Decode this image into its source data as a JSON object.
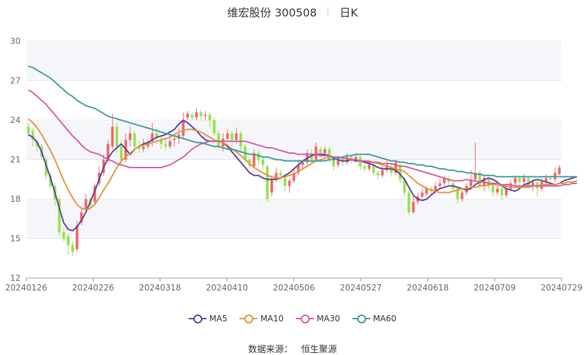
{
  "header": {
    "title": "维宏股份 300508",
    "period": "日K"
  },
  "legend": [
    {
      "key": "ma5",
      "label": "MA5",
      "color": "#5a3fa0"
    },
    {
      "key": "ma10",
      "label": "MA10",
      "color": "#e0953a"
    },
    {
      "key": "ma30",
      "label": "MA30",
      "color": "#d65aa8"
    },
    {
      "key": "ma60",
      "label": "MA60",
      "color": "#3f9a9a"
    }
  ],
  "source": {
    "label": "数据来源：",
    "value": "恒生聚源"
  },
  "colors": {
    "up": "#f06767",
    "down": "#95e34a",
    "grid": "#e6e9f0",
    "plot_bg_alt": "#f5f6fa"
  },
  "chart_data": {
    "type": "candlestick",
    "ylim": [
      12,
      30
    ],
    "yticks": [
      12,
      15,
      18,
      21,
      24,
      27,
      30
    ],
    "xticks": [
      "20240126",
      "20240226",
      "20240318",
      "20240410",
      "20240506",
      "20240527",
      "20240618",
      "20240709",
      "20240729"
    ],
    "candles": [
      [
        23.5,
        23.0,
        23.8,
        22.8
      ],
      [
        23.2,
        22.5,
        23.4,
        22.0
      ],
      [
        22.4,
        22.0,
        22.6,
        21.6
      ],
      [
        22.0,
        21.2,
        22.2,
        21.0
      ],
      [
        21.0,
        19.8,
        21.2,
        19.5
      ],
      [
        19.8,
        19.0,
        20.0,
        18.8
      ],
      [
        19.0,
        18.0,
        19.2,
        17.5
      ],
      [
        18.0,
        15.5,
        18.2,
        15.2
      ],
      [
        15.5,
        15.0,
        15.8,
        14.8
      ],
      [
        15.2,
        14.5,
        15.4,
        13.8
      ],
      [
        14.5,
        14.0,
        14.8,
        13.7
      ],
      [
        14.2,
        16.0,
        16.4,
        14.0
      ],
      [
        16.2,
        17.0,
        17.4,
        16.0
      ],
      [
        17.2,
        18.0,
        18.4,
        17.0
      ],
      [
        18.0,
        17.5,
        18.2,
        17.2
      ],
      [
        17.8,
        19.0,
        19.2,
        17.6
      ],
      [
        19.2,
        20.0,
        20.5,
        19.0
      ],
      [
        20.0,
        21.0,
        21.4,
        19.8
      ],
      [
        21.0,
        22.2,
        22.5,
        20.8
      ],
      [
        22.0,
        23.5,
        24.5,
        21.8
      ],
      [
        23.5,
        22.0,
        23.8,
        21.5
      ],
      [
        22.0,
        21.0,
        22.5,
        20.5
      ],
      [
        21.0,
        22.5,
        23.0,
        20.8
      ],
      [
        22.5,
        23.0,
        23.5,
        22.0
      ],
      [
        23.0,
        22.0,
        23.2,
        21.5
      ],
      [
        22.0,
        21.8,
        22.4,
        21.5
      ],
      [
        21.8,
        22.0,
        22.6,
        21.6
      ],
      [
        22.0,
        22.2,
        22.5,
        21.8
      ],
      [
        22.4,
        23.0,
        23.8,
        22.0
      ],
      [
        23.0,
        22.6,
        23.4,
        22.2
      ],
      [
        22.5,
        22.2,
        22.8,
        21.8
      ],
      [
        22.2,
        22.0,
        22.6,
        21.7
      ],
      [
        22.0,
        22.4,
        22.9,
        21.8
      ],
      [
        22.5,
        22.6,
        23.0,
        22.0
      ],
      [
        22.6,
        22.9,
        23.4,
        22.2
      ],
      [
        22.8,
        24.0,
        24.6,
        22.6
      ],
      [
        24.2,
        24.5,
        24.7,
        24.0
      ],
      [
        24.4,
        24.2,
        24.6,
        24.0
      ],
      [
        24.2,
        24.6,
        24.9,
        24.0
      ],
      [
        24.6,
        24.3,
        24.8,
        24.0
      ],
      [
        24.3,
        24.4,
        24.7,
        24.0
      ],
      [
        24.4,
        24.0,
        24.6,
        23.5
      ],
      [
        24.0,
        23.0,
        24.2,
        22.8
      ],
      [
        23.0,
        22.0,
        23.2,
        21.8
      ],
      [
        22.0,
        22.6,
        23.0,
        21.6
      ],
      [
        22.6,
        23.0,
        23.3,
        22.4
      ],
      [
        23.0,
        22.5,
        23.2,
        22.0
      ],
      [
        22.5,
        23.0,
        23.4,
        22.2
      ],
      [
        23.0,
        22.0,
        23.2,
        21.5
      ],
      [
        22.0,
        21.0,
        22.2,
        20.8
      ],
      [
        21.0,
        20.5,
        21.2,
        20.3
      ],
      [
        20.5,
        21.5,
        21.8,
        20.4
      ],
      [
        21.5,
        21.0,
        21.7,
        20.6
      ],
      [
        21.0,
        20.6,
        21.2,
        20.2
      ],
      [
        20.5,
        18.0,
        20.6,
        17.8
      ],
      [
        18.5,
        19.5,
        19.8,
        18.2
      ],
      [
        19.5,
        20.0,
        20.4,
        19.3
      ],
      [
        20.0,
        19.8,
        20.2,
        19.4
      ],
      [
        19.6,
        19.0,
        19.8,
        18.6
      ],
      [
        19.0,
        19.4,
        19.6,
        18.5
      ],
      [
        19.4,
        20.0,
        20.4,
        19.2
      ],
      [
        20.0,
        20.6,
        21.0,
        19.8
      ],
      [
        20.6,
        20.8,
        21.0,
        20.2
      ],
      [
        20.8,
        21.5,
        21.8,
        20.6
      ],
      [
        21.5,
        21.0,
        21.8,
        20.7
      ],
      [
        21.0,
        22.0,
        22.3,
        20.9
      ],
      [
        21.8,
        21.5,
        22.0,
        21.2
      ],
      [
        21.5,
        21.8,
        22.0,
        21.2
      ],
      [
        21.8,
        21.0,
        22.0,
        20.8
      ],
      [
        21.0,
        20.5,
        21.2,
        20.2
      ],
      [
        20.6,
        21.0,
        21.3,
        20.4
      ],
      [
        21.0,
        20.8,
        21.2,
        20.5
      ],
      [
        20.8,
        21.2,
        21.5,
        20.6
      ],
      [
        21.2,
        21.0,
        21.4,
        20.7
      ],
      [
        21.0,
        21.2,
        21.5,
        20.8
      ],
      [
        21.2,
        20.5,
        21.3,
        20.2
      ],
      [
        20.5,
        20.3,
        20.8,
        20.0
      ],
      [
        20.3,
        20.6,
        20.9,
        20.1
      ],
      [
        20.6,
        20.0,
        20.8,
        19.8
      ],
      [
        20.0,
        19.8,
        20.2,
        19.5
      ],
      [
        19.8,
        20.2,
        20.5,
        19.6
      ],
      [
        20.2,
        20.6,
        20.9,
        20.0
      ],
      [
        20.5,
        20.0,
        20.7,
        19.7
      ],
      [
        20.0,
        20.8,
        21.0,
        19.8
      ],
      [
        20.6,
        19.5,
        20.7,
        19.2
      ],
      [
        19.5,
        18.5,
        19.7,
        18.2
      ],
      [
        18.5,
        17.0,
        18.7,
        16.8
      ],
      [
        17.0,
        17.8,
        18.2,
        16.9
      ],
      [
        17.8,
        18.2,
        18.5,
        17.6
      ],
      [
        18.2,
        18.5,
        18.8,
        18.0
      ],
      [
        18.4,
        18.8,
        19.0,
        18.2
      ],
      [
        18.8,
        18.6,
        19.0,
        18.3
      ],
      [
        18.6,
        19.0,
        19.3,
        18.4
      ],
      [
        19.0,
        19.2,
        19.5,
        18.8
      ],
      [
        19.2,
        19.6,
        19.8,
        19.0
      ],
      [
        19.5,
        19.3,
        19.8,
        19.0
      ],
      [
        19.2,
        18.8,
        19.4,
        18.5
      ],
      [
        18.8,
        18.0,
        19.0,
        17.7
      ],
      [
        18.0,
        18.5,
        18.8,
        17.8
      ],
      [
        18.5,
        19.0,
        19.2,
        18.3
      ],
      [
        19.0,
        19.5,
        20.2,
        18.8
      ],
      [
        19.5,
        20.0,
        22.3,
        19.3
      ],
      [
        20.0,
        19.0,
        20.2,
        18.8
      ],
      [
        19.0,
        19.6,
        19.8,
        18.6
      ],
      [
        19.5,
        19.0,
        19.7,
        18.7
      ],
      [
        19.0,
        18.5,
        19.2,
        18.2
      ],
      [
        18.5,
        18.8,
        19.0,
        18.3
      ],
      [
        18.8,
        18.3,
        19.0,
        17.9
      ],
      [
        18.3,
        18.8,
        19.1,
        18.1
      ],
      [
        18.8,
        19.2,
        19.5,
        18.6
      ],
      [
        19.2,
        19.6,
        19.8,
        19.0
      ],
      [
        19.6,
        19.3,
        19.8,
        19.0
      ],
      [
        19.3,
        19.6,
        19.9,
        19.1
      ],
      [
        19.6,
        19.0,
        19.8,
        18.8
      ],
      [
        19.0,
        19.3,
        19.5,
        18.6
      ],
      [
        19.3,
        18.8,
        19.5,
        18.2
      ],
      [
        18.8,
        19.3,
        19.6,
        18.6
      ],
      [
        19.3,
        19.6,
        19.9,
        19.1
      ],
      [
        19.6,
        19.5,
        19.8,
        19.2
      ],
      [
        19.5,
        20.0,
        20.4,
        19.3
      ],
      [
        19.9,
        20.4,
        20.6,
        19.8
      ]
    ],
    "series": [
      {
        "name": "MA5",
        "values": [
          22.9,
          22.7,
          22.3,
          21.6,
          20.6,
          19.6,
          18.5,
          17.3,
          16.2,
          15.7,
          15.6,
          15.9,
          16.4,
          17.0,
          17.8,
          18.6,
          19.5,
          20.4,
          21.1,
          21.6,
          21.9,
          22.2,
          21.8,
          21.4,
          21.8,
          22.0,
          22.2,
          22.3,
          22.5,
          22.7,
          22.8,
          22.9,
          23.1,
          23.3,
          23.7,
          24.0,
          23.8,
          23.5,
          23.2,
          22.8,
          22.5,
          22.4,
          22.4,
          22.4,
          22.3,
          22.0,
          21.6,
          21.2,
          20.8,
          20.4,
          20.0,
          19.8,
          19.8,
          19.6,
          19.5,
          19.5,
          19.5,
          19.6,
          19.8,
          20.0,
          20.3,
          20.6,
          20.9,
          21.1,
          21.3,
          21.4,
          21.4,
          21.4,
          21.3,
          21.1,
          21.0,
          20.9,
          20.9,
          21.0,
          20.9,
          20.9,
          20.8,
          20.7,
          20.6,
          20.4,
          20.3,
          20.3,
          20.3,
          20.2,
          19.9,
          19.5,
          18.9,
          18.3,
          18.0,
          17.9,
          18.0,
          18.3,
          18.6,
          18.8,
          18.9,
          19.0,
          19.0,
          18.9,
          18.8,
          18.7,
          18.8,
          19.1,
          19.3,
          19.5,
          19.6,
          19.5,
          19.3,
          19.0,
          18.8,
          18.7,
          18.6,
          18.8,
          19.1,
          19.2,
          19.4,
          19.5,
          19.4,
          19.3,
          19.2,
          19.1,
          19.2,
          19.4,
          19.5,
          19.6,
          19.7
        ]
      },
      {
        "name": "MA10",
        "values": [
          24.1,
          23.8,
          23.4,
          22.9,
          22.3,
          21.7,
          21.0,
          20.2,
          19.4,
          18.7,
          18.1,
          17.6,
          17.3,
          17.2,
          17.3,
          17.6,
          18.1,
          18.7,
          19.2,
          19.8,
          20.4,
          20.9,
          21.2,
          21.5,
          21.8,
          22.0,
          22.1,
          22.2,
          22.3,
          22.4,
          22.5,
          22.6,
          22.7,
          22.9,
          23.1,
          23.2,
          23.3,
          23.3,
          23.2,
          23.1,
          22.9,
          22.7,
          22.5,
          22.4,
          22.3,
          22.1,
          21.8,
          21.6,
          21.3,
          21.0,
          20.7,
          20.4,
          20.2,
          20.0,
          19.8,
          19.7,
          19.6,
          19.6,
          19.7,
          19.8,
          19.9,
          20.1,
          20.3,
          20.5,
          20.7,
          20.9,
          21.0,
          21.1,
          21.2,
          21.2,
          21.2,
          21.1,
          21.1,
          21.0,
          21.0,
          20.9,
          20.9,
          20.9,
          20.8,
          20.7,
          20.6,
          20.5,
          20.4,
          20.3,
          20.2,
          20.1,
          19.8,
          19.5,
          19.2,
          19.0,
          18.8,
          18.7,
          18.6,
          18.5,
          18.5,
          18.5,
          18.6,
          18.7,
          18.8,
          18.8,
          18.9,
          18.9,
          19.0,
          19.0,
          19.1,
          19.1,
          19.1,
          19.0,
          19.0,
          18.9,
          18.9,
          18.9,
          18.9,
          18.9,
          19.0,
          19.0,
          19.1,
          19.1,
          19.1,
          19.1,
          19.2,
          19.2,
          19.3,
          19.3,
          19.4
        ]
      },
      {
        "name": "MA30",
        "values": [
          26.3,
          26.1,
          25.8,
          25.5,
          25.2,
          24.8,
          24.4,
          24.0,
          23.6,
          23.2,
          22.8,
          22.5,
          22.1,
          21.8,
          21.6,
          21.5,
          21.4,
          21.2,
          21.0,
          20.9,
          20.7,
          20.6,
          20.5,
          20.4,
          20.4,
          20.4,
          20.4,
          20.4,
          20.4,
          20.4,
          20.4,
          20.5,
          20.6,
          20.8,
          21.0,
          21.2,
          21.5,
          21.8,
          22.0,
          22.2,
          22.3,
          22.4,
          22.4,
          22.4,
          22.4,
          22.4,
          22.4,
          22.4,
          22.4,
          22.4,
          22.3,
          22.2,
          22.1,
          22.0,
          21.9,
          21.9,
          21.8,
          21.7,
          21.6,
          21.5,
          21.5,
          21.4,
          21.4,
          21.4,
          21.4,
          21.4,
          21.3,
          21.3,
          21.3,
          21.2,
          21.2,
          21.1,
          21.1,
          21.0,
          21.0,
          20.9,
          20.9,
          20.8,
          20.8,
          20.8,
          20.7,
          20.7,
          20.7,
          20.6,
          20.5,
          20.5,
          20.4,
          20.3,
          20.2,
          20.1,
          20.0,
          19.9,
          19.8,
          19.7,
          19.6,
          19.5,
          19.4,
          19.4,
          19.4,
          19.5,
          19.4,
          19.4,
          19.3,
          19.3,
          19.2,
          19.2,
          19.2,
          19.1,
          19.1,
          19.1,
          19.0,
          19.0,
          19.0,
          19.0,
          19.0,
          19.0,
          19.0,
          19.0,
          19.0,
          19.0,
          19.0,
          19.1,
          19.1,
          19.2,
          19.2
        ]
      },
      {
        "name": "MA60",
        "values": [
          28.1,
          28.0,
          27.8,
          27.6,
          27.4,
          27.2,
          26.9,
          26.6,
          26.3,
          26.0,
          25.8,
          25.5,
          25.3,
          25.1,
          25.0,
          24.9,
          24.7,
          24.5,
          24.3,
          24.2,
          24.1,
          24.0,
          23.9,
          23.8,
          23.7,
          23.6,
          23.5,
          23.4,
          23.3,
          23.2,
          23.1,
          23.0,
          22.9,
          22.8,
          22.7,
          22.6,
          22.5,
          22.4,
          22.3,
          22.3,
          22.2,
          22.1,
          22.0,
          22.0,
          21.9,
          21.8,
          21.8,
          21.7,
          21.6,
          21.5,
          21.4,
          21.4,
          21.3,
          21.2,
          21.2,
          21.1,
          21.0,
          21.0,
          20.9,
          20.9,
          20.9,
          20.9,
          20.9,
          20.9,
          20.9,
          20.9,
          20.9,
          20.9,
          21.0,
          21.0,
          21.1,
          21.2,
          21.3,
          21.3,
          21.4,
          21.4,
          21.4,
          21.4,
          21.3,
          21.2,
          21.1,
          21.0,
          20.9,
          20.9,
          20.8,
          20.8,
          20.7,
          20.7,
          20.6,
          20.6,
          20.5,
          20.5,
          20.4,
          20.3,
          20.3,
          20.2,
          20.2,
          20.1,
          20.1,
          20.0,
          20.0,
          19.9,
          19.9,
          19.8,
          19.8,
          19.8,
          19.7,
          19.7,
          19.7,
          19.7,
          19.7,
          19.7,
          19.7,
          19.7,
          19.7,
          19.7,
          19.7,
          19.7,
          19.7,
          19.7,
          19.7,
          19.7,
          19.7,
          19.7,
          19.7
        ]
      }
    ]
  }
}
